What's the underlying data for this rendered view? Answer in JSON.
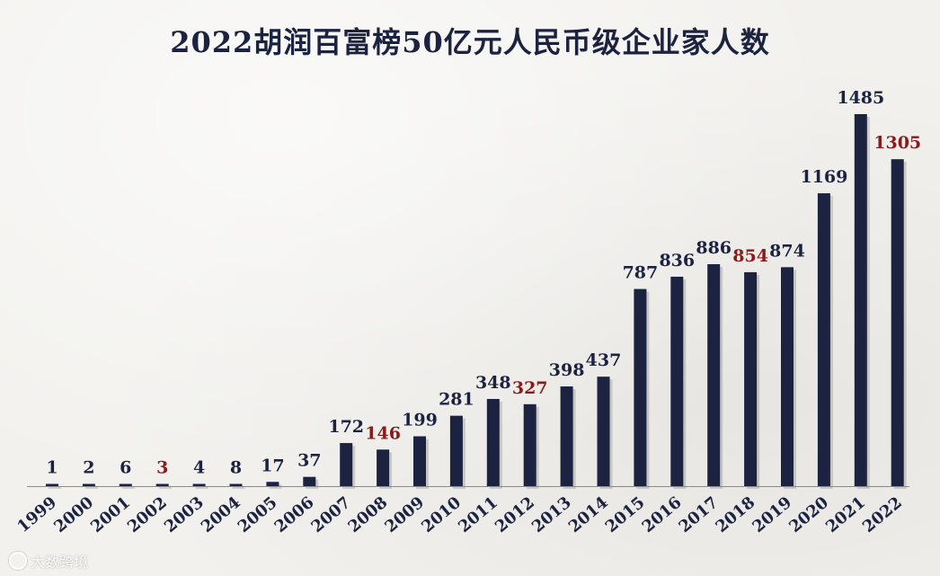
{
  "chart_data": {
    "type": "bar",
    "title": "2022胡润百富榜50亿元人民币级企业家人数",
    "categories": [
      "1999",
      "2000",
      "2001",
      "2002",
      "2003",
      "2004",
      "2005",
      "2006",
      "2007",
      "2008",
      "2009",
      "2010",
      "2011",
      "2012",
      "2013",
      "2014",
      "2015",
      "2016",
      "2017",
      "2018",
      "2019",
      "2020",
      "2021",
      "2022"
    ],
    "values": [
      1,
      2,
      6,
      3,
      4,
      8,
      17,
      37,
      172,
      146,
      199,
      281,
      348,
      327,
      398,
      437,
      787,
      836,
      886,
      854,
      874,
      1169,
      1485,
      1305
    ],
    "highlighted_categories": [
      "2002",
      "2008",
      "2012",
      "2018",
      "2022"
    ],
    "xlabel": "",
    "ylabel": "",
    "ylim": [
      0,
      1485
    ],
    "grid": false,
    "colors": {
      "bar": "#1c2340",
      "label": "#1c2340",
      "label_highlight": "#8b1a1a"
    }
  },
  "watermark": {
    "text": "大数跨境",
    "icon": "brand-logo-icon"
  }
}
